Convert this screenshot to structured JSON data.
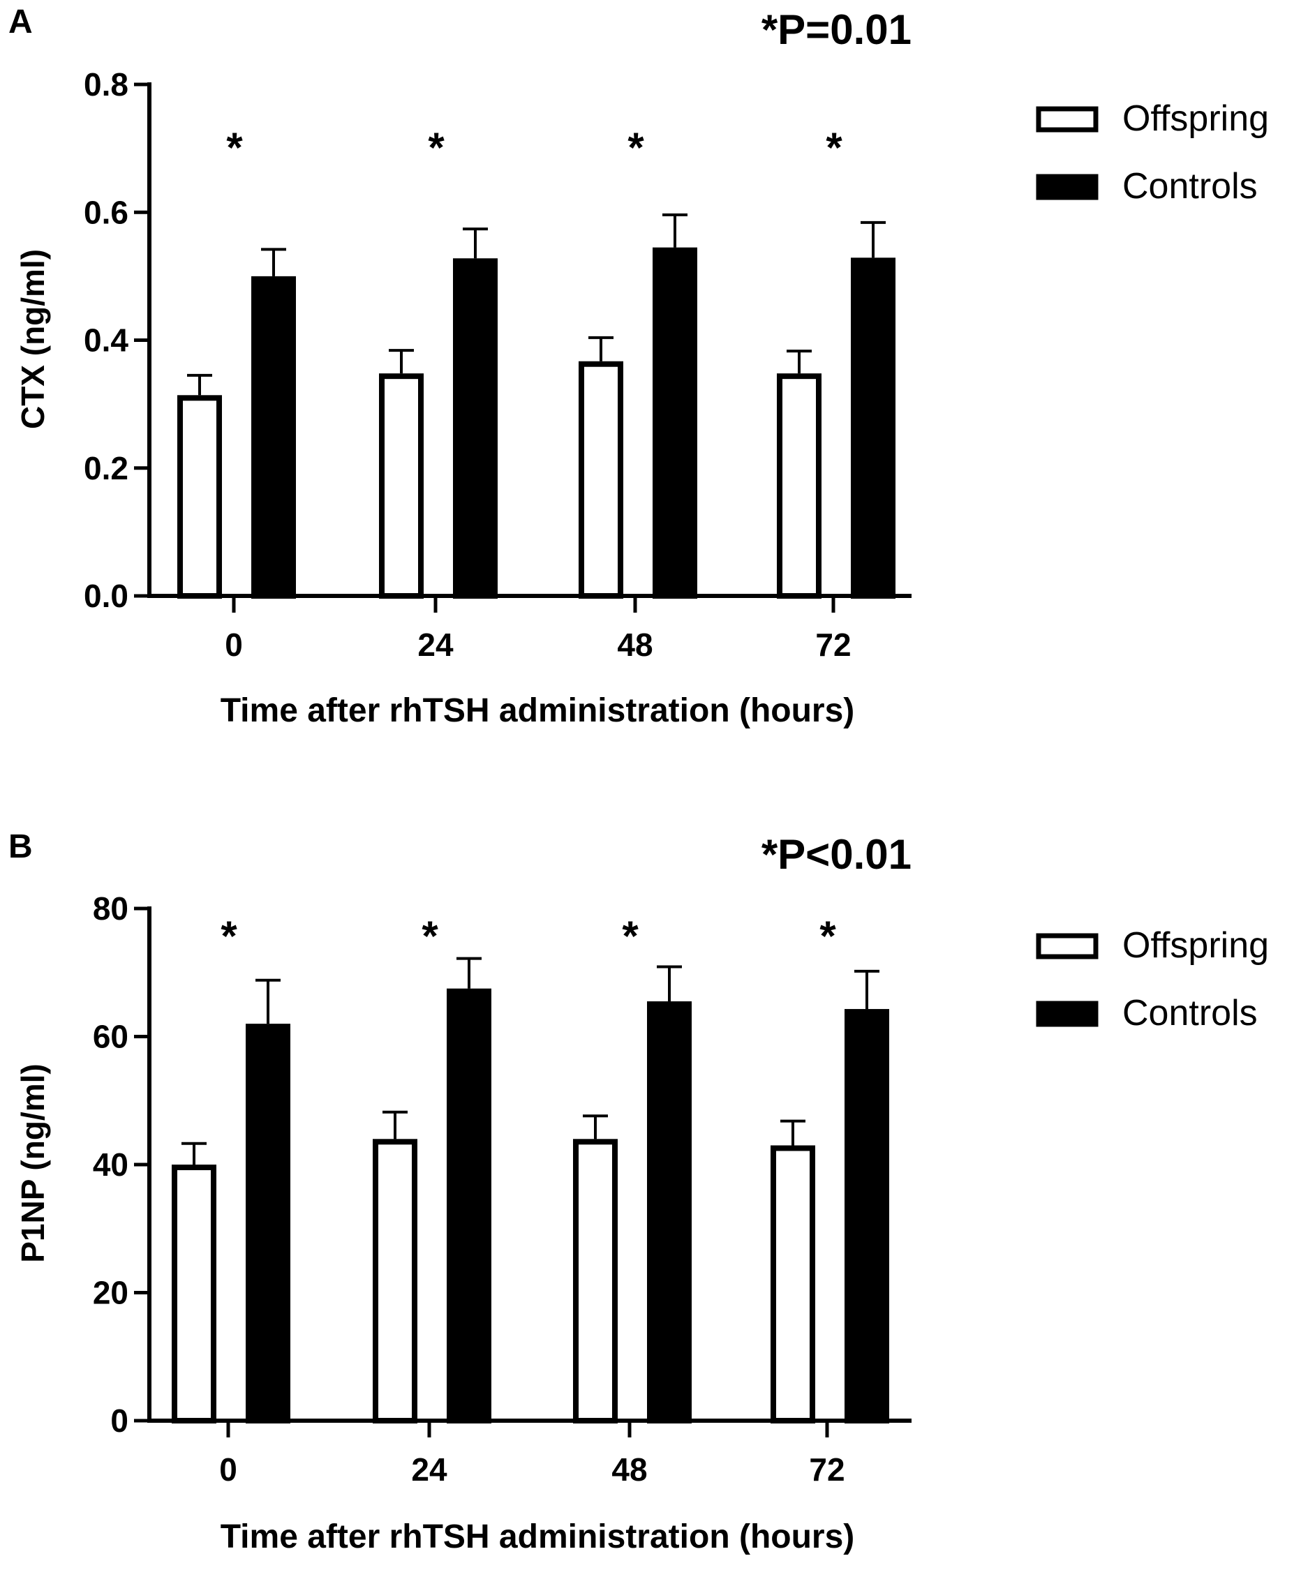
{
  "chart_data": [
    {
      "panel_label": "A",
      "type": "bar",
      "annotation": "*P=0.01",
      "categories": [
        "0",
        "24",
        "48",
        "72"
      ],
      "series": [
        {
          "name": "Offspring",
          "fill": "#ffffff",
          "values": [
            0.314,
            0.348,
            0.367,
            0.348
          ],
          "errors": [
            0.031,
            0.036,
            0.037,
            0.035
          ]
        },
        {
          "name": "Controls",
          "fill": "#000000",
          "values": [
            0.5,
            0.528,
            0.545,
            0.529
          ],
          "errors": [
            0.042,
            0.046,
            0.051,
            0.055
          ]
        }
      ],
      "significance_markers": [
        "*",
        "*",
        "*",
        "*"
      ],
      "xlabel": "Time after rhTSH administration (hours)",
      "ylabel": "CTX (ng/ml)",
      "ylim": [
        0,
        0.8
      ],
      "yticks": [
        "0.0",
        "0.2",
        "0.4",
        "0.6",
        "0.8"
      ],
      "grid": false,
      "legend_position": "top-right"
    },
    {
      "panel_label": "B",
      "type": "bar",
      "annotation": "*P<0.01",
      "categories": [
        "0",
        "24",
        "48",
        "72"
      ],
      "series": [
        {
          "name": "Offspring",
          "fill": "#ffffff",
          "values": [
            40,
            44,
            44,
            43
          ],
          "errors": [
            3.3,
            4.2,
            3.6,
            3.8
          ]
        },
        {
          "name": "Controls",
          "fill": "#000000",
          "values": [
            62,
            67.5,
            65.5,
            64.3
          ],
          "errors": [
            6.8,
            4.7,
            5.4,
            5.9
          ]
        }
      ],
      "significance_markers": [
        "*",
        "*",
        "*",
        "*"
      ],
      "xlabel": "Time after rhTSH administration (hours)",
      "ylabel": "P1NP (ng/ml)",
      "ylim": [
        0,
        80
      ],
      "yticks": [
        "0",
        "20",
        "40",
        "60",
        "80"
      ],
      "grid": false,
      "legend_position": "top-right"
    }
  ]
}
